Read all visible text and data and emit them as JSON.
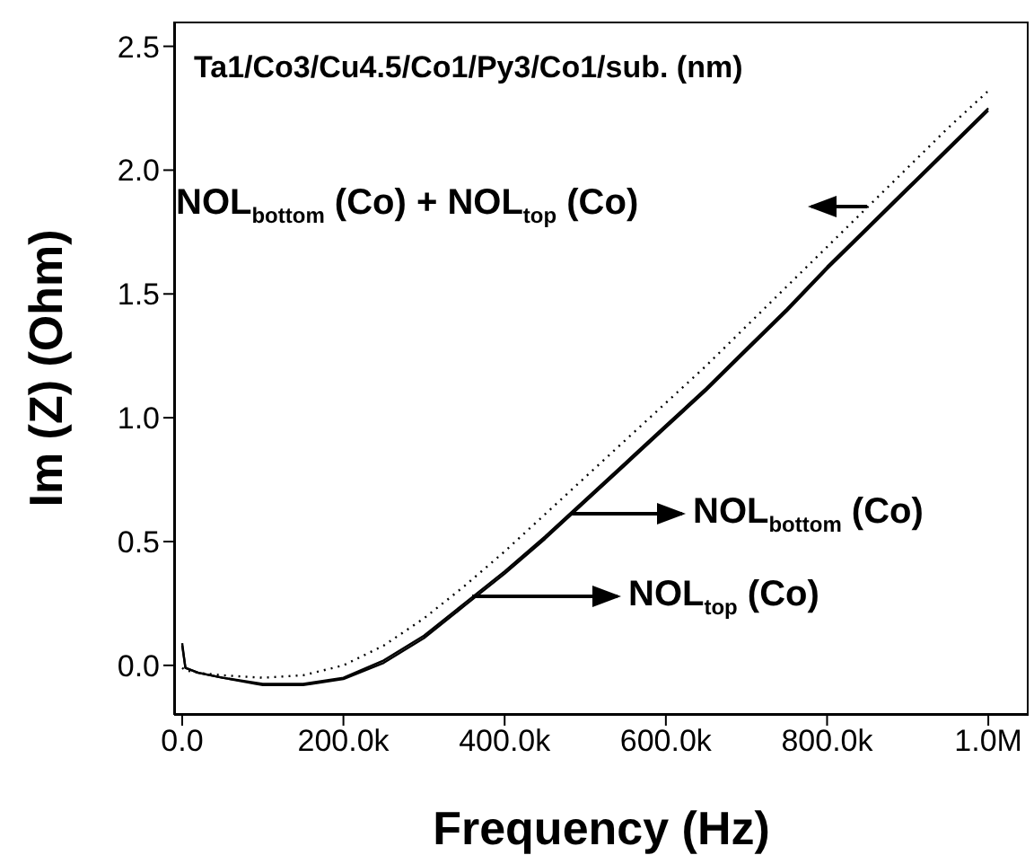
{
  "chart_data": {
    "type": "line",
    "title": "Ta1/Co3/Cu4.5/Co1/Py3/Co1/sub. (nm)",
    "xlabel": "Frequency (Hz)",
    "ylabel": "Im (Z) (Ohm)",
    "x": [
      0,
      4000,
      20000,
      50000,
      100000,
      150000,
      200000,
      250000,
      300000,
      350000,
      400000,
      450000,
      500000,
      550000,
      600000,
      650000,
      700000,
      750000,
      800000,
      850000,
      900000,
      950000,
      1000000
    ],
    "series": [
      {
        "color": "#000000",
        "line_style": "dotted",
        "values": [
          -0.01,
          -0.02,
          -0.03,
          -0.04,
          -0.05,
          -0.04,
          0.0,
          0.08,
          0.19,
          0.32,
          0.46,
          0.61,
          0.76,
          0.91,
          1.06,
          1.21,
          1.37,
          1.53,
          1.69,
          1.85,
          2.01,
          2.17,
          2.32
        ]
      },
      {
        "color": "#000000",
        "line_style": "solid",
        "values": [
          0.09,
          -0.01,
          -0.03,
          -0.05,
          -0.075,
          -0.075,
          -0.05,
          0.02,
          0.12,
          0.25,
          0.38,
          0.52,
          0.67,
          0.82,
          0.97,
          1.12,
          1.28,
          1.44,
          1.61,
          1.77,
          1.93,
          2.09,
          2.25
        ]
      },
      {
        "color": "#000000",
        "line_style": "solid",
        "values": [
          0.08,
          -0.01,
          -0.03,
          -0.05,
          -0.08,
          -0.08,
          -0.055,
          0.01,
          0.11,
          0.24,
          0.37,
          0.51,
          0.66,
          0.81,
          0.96,
          1.11,
          1.27,
          1.43,
          1.6,
          1.76,
          1.92,
          2.08,
          2.24
        ]
      }
    ],
    "xlim": [
      -10000,
      1050000
    ],
    "ylim": [
      -0.2,
      2.6
    ],
    "xticks": [
      {
        "value": 0,
        "label": "0.0"
      },
      {
        "value": 200000,
        "label": "200.0k"
      },
      {
        "value": 400000,
        "label": "400.0k"
      },
      {
        "value": 600000,
        "label": "600.0k"
      },
      {
        "value": 800000,
        "label": "800.0k"
      },
      {
        "value": 1000000,
        "label": "1.0M"
      }
    ],
    "yticks": [
      {
        "value": 0,
        "label": "0.0"
      },
      {
        "value": 0.5,
        "label": "0.5"
      },
      {
        "value": 1,
        "label": "1.0"
      },
      {
        "value": 1.5,
        "label": "1.5"
      },
      {
        "value": 2,
        "label": "2.0"
      },
      {
        "value": 2.5,
        "label": "2.5"
      }
    ],
    "annotations": [
      "NOL$_{bottom}$ (Co) + NOL$_{top}$ (Co)",
      "NOL$_{bottom}$ (Co)",
      "NOL$_{top}$ (Co)"
    ],
    "grid": false,
    "legend": false,
    "marker": "none"
  }
}
